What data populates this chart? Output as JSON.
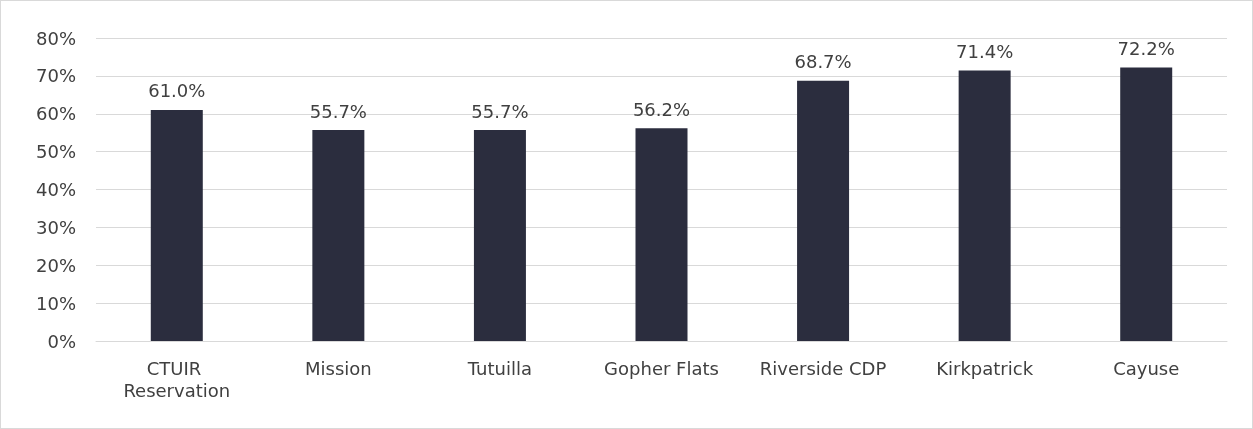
{
  "chart_data": {
    "type": "bar",
    "categories": [
      "CTUIR Reservation",
      "Mission",
      "Tutuilla",
      "Gopher Flats",
      "Riverside CDP",
      "Kirkpatrick",
      "Cayuse"
    ],
    "values": [
      61.0,
      55.7,
      55.7,
      56.2,
      68.7,
      71.4,
      72.2
    ],
    "value_labels": [
      "61.0%",
      "55.7%",
      "55.7%",
      "56.2%",
      "68.7%",
      "71.4%",
      "72.2%"
    ],
    "color": "#2b2d3e",
    "ylim": [
      0,
      80
    ],
    "yticks": [
      {
        "value": 0,
        "label": "0%"
      },
      {
        "value": 10,
        "label": "10%"
      },
      {
        "value": 20,
        "label": "20%"
      },
      {
        "value": 30,
        "label": "30%"
      },
      {
        "value": 40,
        "label": "40%"
      },
      {
        "value": 50,
        "label": "50%"
      },
      {
        "value": 60,
        "label": "60%"
      },
      {
        "value": 70,
        "label": "70%"
      },
      {
        "value": 80,
        "label": "80%"
      }
    ],
    "grid": "y"
  }
}
